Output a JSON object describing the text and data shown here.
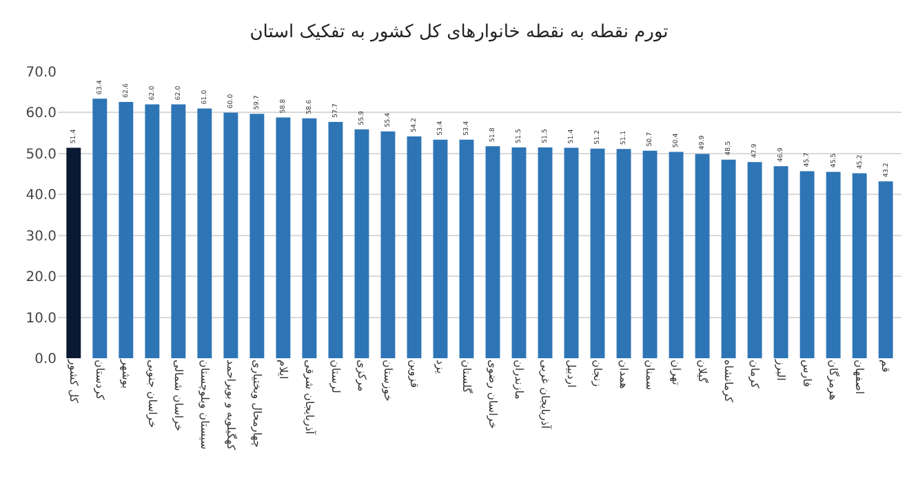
{
  "chart_data": {
    "type": "bar",
    "title": "تورم نقطه به نقطه خانوارهای کل کشور به تفکیک استان",
    "categories": [
      "کل کشور",
      "کردستان",
      "بوشهر",
      "خراسان جنوبی",
      "خراسان شمالی",
      "سیستان وبلوچستان",
      "کهگیلویه و بویراحمد",
      "چهارمحال وبختیاری",
      "ایلام",
      "آذربایجان شرقی",
      "لرستان",
      "مرکزی",
      "خوزستان",
      "قزوین",
      "یزد",
      "گلستان",
      "خراسان رضوی",
      "مازندران",
      "آذربایجان غربی",
      "اردبیل",
      "زنجان",
      "همدان",
      "سمنان",
      "تهران",
      "گیلان",
      "کرمانشاه",
      "کرمان",
      "البرز",
      "فارس",
      "هرمزگان",
      "اصفهان",
      "قم"
    ],
    "values": [
      51.4,
      63.4,
      62.6,
      62.0,
      62.0,
      61.0,
      60.0,
      59.7,
      58.8,
      58.6,
      57.7,
      55.9,
      55.4,
      54.2,
      53.4,
      53.4,
      51.8,
      51.5,
      51.5,
      51.4,
      51.2,
      51.1,
      50.7,
      50.4,
      49.9,
      48.5,
      47.9,
      46.9,
      45.7,
      45.5,
      45.2,
      43.2
    ],
    "colors": [
      "#0b1a33",
      "#2e75b6",
      "#2e75b6",
      "#2e75b6",
      "#2e75b6",
      "#2e75b6",
      "#2e75b6",
      "#2e75b6",
      "#2e75b6",
      "#2e75b6",
      "#2e75b6",
      "#2e75b6",
      "#2e75b6",
      "#2e75b6",
      "#2e75b6",
      "#2e75b6",
      "#2e75b6",
      "#2e75b6",
      "#2e75b6",
      "#2e75b6",
      "#2e75b6",
      "#2e75b6",
      "#2e75b6",
      "#2e75b6",
      "#2e75b6",
      "#2e75b6",
      "#2e75b6",
      "#2e75b6",
      "#2e75b6",
      "#2e75b6",
      "#2e75b6",
      "#2e75b6"
    ],
    "value_labels": [
      "51.4",
      "63.4",
      "62.6",
      "62.0",
      "62.0",
      "61.0",
      "60.0",
      "59.7",
      "58.8",
      "58.6",
      "57.7",
      "55.9",
      "55.4",
      "54.2",
      "53.4",
      "53.4",
      "51.8",
      "51.5",
      "51.5",
      "51.4",
      "51.2",
      "51.1",
      "50.7",
      "50.4",
      "49.9",
      "48.5",
      "47.9",
      "46.9",
      "45.7",
      "45.5",
      "45.2",
      "43.2"
    ],
    "ylim": [
      0,
      70
    ],
    "yticks": [
      {
        "value": 0,
        "label": "0.0"
      },
      {
        "value": 10,
        "label": "10.0"
      },
      {
        "value": 20,
        "label": "20.0"
      },
      {
        "value": 30,
        "label": "30.0"
      },
      {
        "value": 40,
        "label": "40.0"
      },
      {
        "value": 50,
        "label": "50.0"
      },
      {
        "value": 60,
        "label": "60.0"
      },
      {
        "value": 70,
        "label": "70.0"
      }
    ],
    "grid": "y"
  }
}
